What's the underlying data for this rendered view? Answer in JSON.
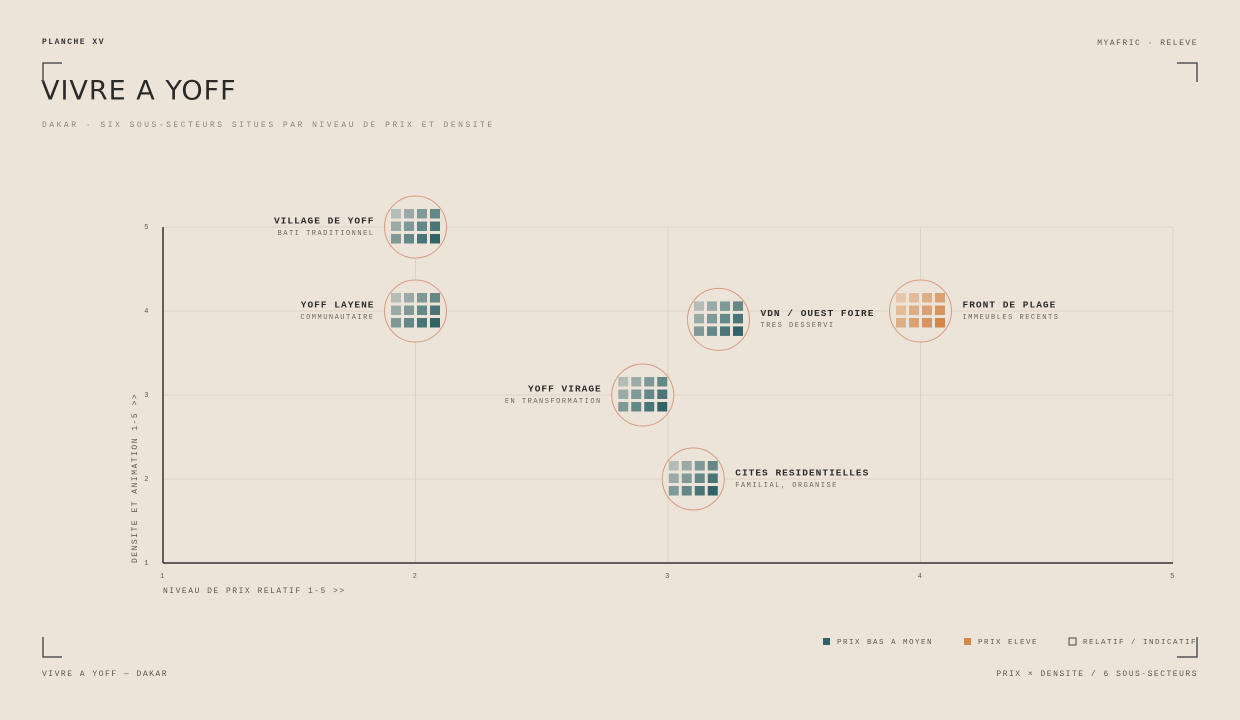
{
  "header": {
    "plate": "PLANCHE XV",
    "brand": "MYAFRIC · RELEVE"
  },
  "chart_data": {
    "type": "scatter",
    "title": "VIVRE A YOFF",
    "subtitle": "DAKAR · SIX SOUS-SECTEURS SITUES PAR NIVEAU DE PRIX ET DENSITE",
    "x_label": "NIVEAU DE PRIX RELATIF  1-5  >>",
    "y_label": "DENSITE ET ANIMATION  1-5  >>",
    "xlim": [
      1,
      5
    ],
    "ylim": [
      1,
      5
    ],
    "xticks": [
      1,
      2,
      3,
      4,
      5
    ],
    "yticks": [
      1,
      2,
      3,
      4,
      5
    ],
    "grid": true,
    "points": [
      {
        "name": "VILLAGE DE YOFF",
        "note": "BATI TRADITIONNEL",
        "x": 2,
        "y": 5,
        "group": 0
      },
      {
        "name": "YOFF LAYENE",
        "note": "COMMUNAUTAIRE",
        "x": 2,
        "y": 4,
        "group": 0
      },
      {
        "name": "VDN / OUEST FOIRE",
        "note": "TRES DESSERVI",
        "x": 3.2,
        "y": 3.9,
        "group": 0
      },
      {
        "name": "FRONT DE PLAGE",
        "note": "IMMEUBLES RECENTS",
        "x": 4,
        "y": 4,
        "group": 1
      },
      {
        "name": "YOFF VIRAGE",
        "note": "EN TRANSFORMATION",
        "x": 2.9,
        "y": 3,
        "group": 0
      },
      {
        "name": "CITES RESIDENTIELLES",
        "note": "FAMILIAL, ORGANISE",
        "x": 3.1,
        "y": 2,
        "group": 0
      }
    ],
    "legend": [
      {
        "name": "PRIX BAS A MOYEN",
        "color": "#2f6366"
      },
      {
        "name": "PRIX ELEVE",
        "color": "#d4874a"
      },
      {
        "name": "RELATIF / INDICATIF"
      }
    ],
    "marker_outline": "#d49a80"
  },
  "footer": {
    "left": "VIVRE A YOFF — DAKAR",
    "right": "PRIX × DENSITE / 6 SOUS-SECTEURS"
  }
}
